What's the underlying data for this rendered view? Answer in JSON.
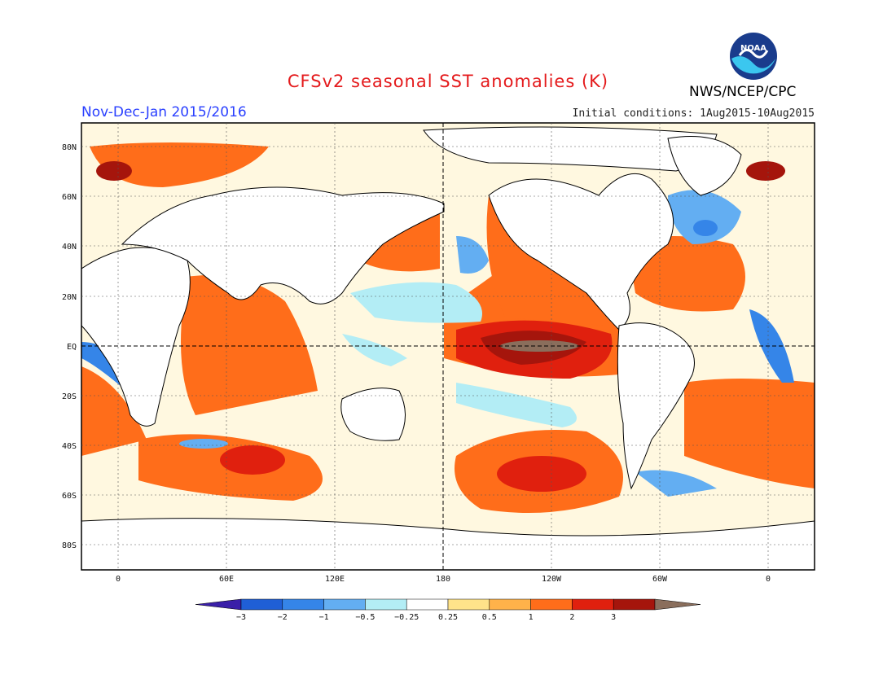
{
  "header": {
    "title": "CFSv2 seasonal SST anomalies (K)",
    "period": "Nov-Dec-Jan 2015/2016",
    "initial_conditions": "Initial conditions: 1Aug2015-10Aug2015",
    "agency": "NWS/NCEP/CPC",
    "logo_text": "NOAA"
  },
  "map": {
    "lat_labels": [
      "80N",
      "60N",
      "40N",
      "20N",
      "EQ",
      "20S",
      "40S",
      "60S",
      "80S"
    ],
    "lon_labels": [
      "0",
      "60E",
      "120E",
      "180",
      "120W",
      "60W",
      "0"
    ]
  },
  "colorbar": {
    "labels": [
      "-3",
      "-2",
      "-1",
      "-0.5",
      "-0.25",
      "0.25",
      "0.5",
      "1",
      "2",
      "3"
    ],
    "colors": [
      "#3a1fa8",
      "#1f5fd6",
      "#3585e8",
      "#63aef2",
      "#b3edf5",
      "#ffffff",
      "#ffe38a",
      "#ffb24a",
      "#ff6d1a",
      "#e0200e",
      "#a5150c",
      "#8a6e5c"
    ]
  }
}
